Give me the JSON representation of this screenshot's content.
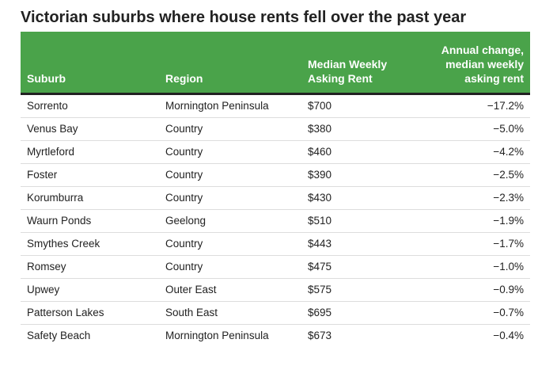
{
  "title": "Victorian suburbs where house rents fell over the past year",
  "chart_data": {
    "type": "table",
    "title": "Victorian suburbs where house rents fell over the past year",
    "columns": [
      "Suburb",
      "Region",
      "Median Weekly Asking Rent",
      "Annual change, median weekly asking rent"
    ],
    "rows": [
      [
        "Sorrento",
        "Mornington Peninsula",
        "$700",
        "−17.2%"
      ],
      [
        "Venus Bay",
        "Country",
        "$380",
        "−5.0%"
      ],
      [
        "Myrtleford",
        "Country",
        "$460",
        "−4.2%"
      ],
      [
        "Foster",
        "Country",
        "$390",
        "−2.5%"
      ],
      [
        "Korumburra",
        "Country",
        "$430",
        "−2.3%"
      ],
      [
        "Waurn Ponds",
        "Geelong",
        "$510",
        "−1.9%"
      ],
      [
        "Smythes Creek",
        "Country",
        "$443",
        "−1.7%"
      ],
      [
        "Romsey",
        "Country",
        "$475",
        "−1.0%"
      ],
      [
        "Upwey",
        "Outer East",
        "$575",
        "−0.9%"
      ],
      [
        "Patterson Lakes",
        "South East",
        "$695",
        "−0.7%"
      ],
      [
        "Safety Beach",
        "Mornington Peninsula",
        "$673",
        "−0.4%"
      ]
    ],
    "median_weekly_rent": [
      700,
      380,
      460,
      390,
      430,
      510,
      443,
      475,
      575,
      695,
      673
    ],
    "annual_change_pct": [
      -17.2,
      -5.0,
      -4.2,
      -2.5,
      -2.3,
      -1.9,
      -1.7,
      -1.0,
      -0.9,
      -0.7,
      -0.4
    ]
  },
  "colors": {
    "header_background": "#4aa34a",
    "header_text": "#ffffff",
    "header_rule": "#222222",
    "row_divider": "#dddddd"
  }
}
